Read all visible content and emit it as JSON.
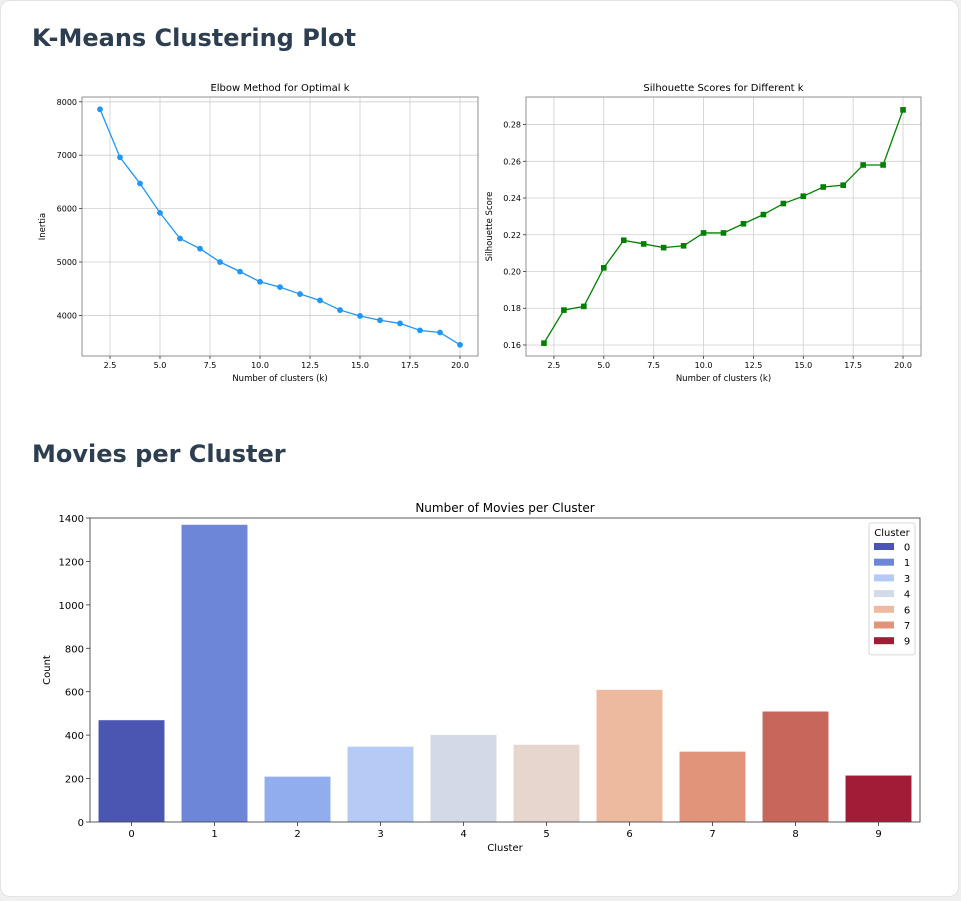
{
  "page": {
    "title": "K-Means Clustering Plot",
    "section2_title": "Movies per Cluster"
  },
  "chart_data": [
    {
      "type": "line",
      "title": "Elbow Method for Optimal k",
      "xlabel": "Number of clusters (k)",
      "ylabel": "Inertia",
      "x": [
        2,
        3,
        4,
        5,
        6,
        7,
        8,
        9,
        10,
        11,
        12,
        13,
        14,
        15,
        16,
        17,
        18,
        19,
        20
      ],
      "values": [
        7860,
        6960,
        6470,
        5920,
        5440,
        5250,
        5000,
        4820,
        4630,
        4530,
        4400,
        4280,
        4100,
        3990,
        3910,
        3850,
        3720,
        3680,
        3450
      ],
      "xlim": [
        1.1,
        20.9
      ],
      "ylim": [
        3240,
        8090
      ],
      "xticks": [
        "2.5",
        "5.0",
        "7.5",
        "10.0",
        "12.5",
        "15.0",
        "17.5",
        "20.0"
      ],
      "yticks": [
        "4000",
        "5000",
        "6000",
        "7000",
        "8000"
      ],
      "color": "#2196f3",
      "marker": "circle",
      "grid": true
    },
    {
      "type": "line",
      "title": "Silhouette Scores for Different k",
      "xlabel": "Number of clusters (k)",
      "ylabel": "Silhouette Score",
      "x": [
        2,
        3,
        4,
        5,
        6,
        7,
        8,
        9,
        10,
        11,
        12,
        13,
        14,
        15,
        16,
        17,
        18,
        19,
        20
      ],
      "values": [
        0.161,
        0.179,
        0.181,
        0.202,
        0.217,
        0.215,
        0.213,
        0.214,
        0.221,
        0.221,
        0.226,
        0.231,
        0.237,
        0.241,
        0.246,
        0.247,
        0.258,
        0.258,
        0.288
      ],
      "xlim": [
        1.1,
        20.9
      ],
      "ylim": [
        0.154,
        0.295
      ],
      "xticks": [
        "2.5",
        "5.0",
        "7.5",
        "10.0",
        "12.5",
        "15.0",
        "17.5",
        "20.0"
      ],
      "yticks": [
        "0.16",
        "0.18",
        "0.20",
        "0.22",
        "0.24",
        "0.26",
        "0.28"
      ],
      "color": "#008000",
      "marker": "square",
      "grid": true
    },
    {
      "type": "bar",
      "title": "Number of Movies per Cluster",
      "xlabel": "Cluster",
      "ylabel": "Count",
      "categories": [
        "0",
        "1",
        "2",
        "3",
        "4",
        "5",
        "6",
        "7",
        "8",
        "9"
      ],
      "values": [
        470,
        1370,
        210,
        348,
        402,
        357,
        610,
        325,
        510,
        215
      ],
      "colors": [
        "#4a56b1",
        "#6d86d8",
        "#91aded",
        "#b5cbf5",
        "#d2dae8",
        "#e7d6ce",
        "#edbaa0",
        "#e2947a",
        "#c7665a",
        "#a21c38"
      ],
      "ylim": [
        0,
        1400
      ],
      "yticks": [
        "0",
        "200",
        "400",
        "600",
        "800",
        "1000",
        "1200",
        "1400"
      ],
      "legend": {
        "title": "Cluster",
        "entries": [
          "0",
          "1",
          "3",
          "4",
          "6",
          "7",
          "9"
        ],
        "colors": [
          "#4a56b1",
          "#6d86d8",
          "#b5cbf5",
          "#d2dae8",
          "#edbaa0",
          "#e2947a",
          "#a21c38"
        ],
        "position": "upper right"
      },
      "grid": false
    }
  ]
}
